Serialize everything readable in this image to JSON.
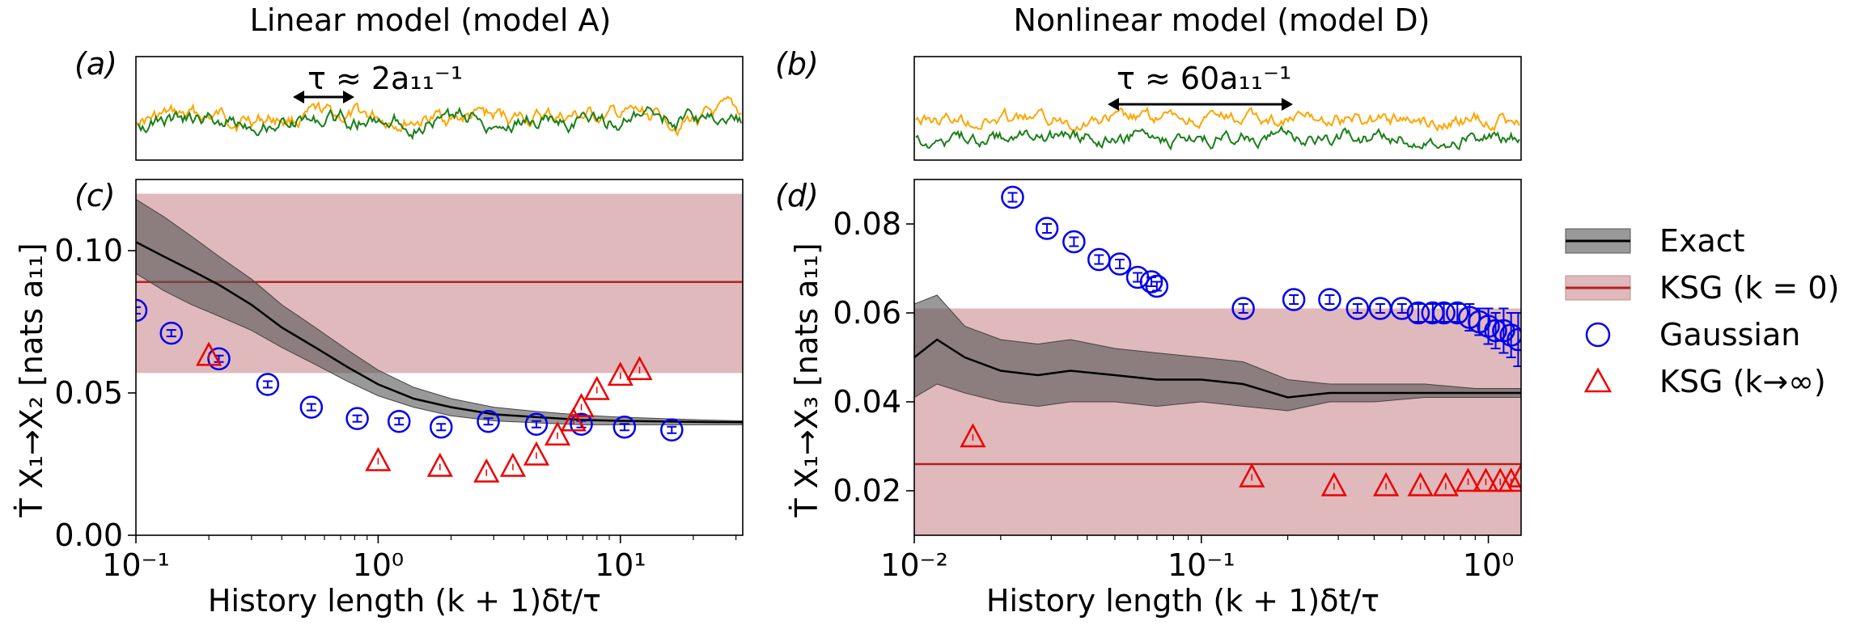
{
  "columns": {
    "left_title": "Linear model (model A)",
    "right_title": "Nonlinear model (model D)"
  },
  "panel_labels": {
    "a": "(a)",
    "b": "(b)",
    "c": "(c)",
    "d": "(d)"
  },
  "annotations": {
    "a": "τ ≈ 2a₁₁⁻¹",
    "b": "τ ≈ 60a₁₁⁻¹"
  },
  "axes": {
    "xlabel": "History length (k + 1)δt/τ",
    "ylabel_c": "Ṫ X₁→X₂ [nats a₁₁]",
    "ylabel_d": "Ṫ X₁→X₃ [nats a₁₁]"
  },
  "legend": [
    {
      "key": "exact",
      "label": "Exact"
    },
    {
      "key": "ksg0",
      "label": "KSG (k = 0)"
    },
    {
      "key": "gaussian",
      "label": "Gaussian"
    },
    {
      "key": "ksginf",
      "label": "KSG (k→∞)"
    }
  ],
  "colors": {
    "exact": "#000000",
    "exact_band": "#555555",
    "ksg0": "#b22222",
    "ksg0_band": "#c98b8e",
    "gaussian": "#0000ee",
    "ksginf": "#ee0000",
    "trace_orange": "#ffa500",
    "trace_green": "#1a7f1a"
  },
  "chart_data": [
    {
      "id": "c",
      "type": "scatter",
      "xscale": "log",
      "xlim": [
        0.1,
        32
      ],
      "ylim": [
        0.0,
        0.125
      ],
      "xticks": [
        0.1,
        1,
        10
      ],
      "xtick_labels": [
        "10⁻¹",
        "10⁰",
        "10¹"
      ],
      "yticks": [
        0.0,
        0.05,
        0.1
      ],
      "ytick_labels": [
        "0.00",
        "0.05",
        "0.10"
      ],
      "xlabel": "History length (k + 1)δt/τ",
      "ylabel": "Ṫ X₁→X₂ [nats a₁₁]",
      "exact": {
        "x": [
          0.1,
          0.13,
          0.17,
          0.22,
          0.3,
          0.4,
          0.55,
          0.75,
          1.0,
          1.4,
          2.0,
          3.0,
          4.5,
          7.0,
          10,
          15,
          22,
          32
        ],
        "y": [
          0.103,
          0.098,
          0.093,
          0.088,
          0.081,
          0.073,
          0.066,
          0.059,
          0.053,
          0.048,
          0.045,
          0.0425,
          0.0415,
          0.0405,
          0.0402,
          0.04,
          0.0398,
          0.0397
        ],
        "band_upper": [
          0.118,
          0.112,
          0.105,
          0.098,
          0.09,
          0.081,
          0.073,
          0.065,
          0.058,
          0.052,
          0.048,
          0.045,
          0.0435,
          0.0422,
          0.0415,
          0.041,
          0.0405,
          0.0402
        ],
        "band_lower": [
          0.092,
          0.086,
          0.081,
          0.077,
          0.072,
          0.066,
          0.06,
          0.054,
          0.049,
          0.045,
          0.042,
          0.0402,
          0.0395,
          0.0388,
          0.0388,
          0.0388,
          0.0388,
          0.0388
        ]
      },
      "ksg0": {
        "value": 0.089,
        "band": [
          0.057,
          0.12
        ]
      },
      "gaussian": {
        "x": [
          0.1,
          0.14,
          0.22,
          0.35,
          0.53,
          0.82,
          1.22,
          1.82,
          2.85,
          4.5,
          6.9,
          10.4,
          16.3
        ],
        "y": [
          0.079,
          0.071,
          0.062,
          0.053,
          0.045,
          0.041,
          0.04,
          0.038,
          0.04,
          0.039,
          0.039,
          0.038,
          0.037
        ],
        "err": [
          0.001,
          0.001,
          0.001,
          0.001,
          0.001,
          0.001,
          0.001,
          0.001,
          0.001,
          0.001,
          0.001,
          0.001,
          0.001
        ]
      },
      "ksginf": {
        "x": [
          0.2,
          1.0,
          1.8,
          2.8,
          3.6,
          4.5,
          5.5,
          6.4,
          6.9,
          8.0,
          10.0,
          12.0
        ],
        "y": [
          0.063,
          0.026,
          0.024,
          0.022,
          0.024,
          0.028,
          0.035,
          0.04,
          0.045,
          0.051,
          0.056,
          0.058
        ]
      }
    },
    {
      "id": "d",
      "type": "scatter",
      "xscale": "log",
      "xlim": [
        0.01,
        1.3
      ],
      "ylim": [
        0.01,
        0.09
      ],
      "xticks": [
        0.01,
        0.1,
        1
      ],
      "xtick_labels": [
        "10⁻²",
        "10⁻¹",
        "10⁰"
      ],
      "yticks": [
        0.02,
        0.04,
        0.06,
        0.08
      ],
      "ytick_labels": [
        "0.02",
        "0.04",
        "0.06",
        "0.08"
      ],
      "xlabel": "History length (k + 1)δt/τ",
      "ylabel": "Ṫ X₁→X₃ [nats a₁₁]",
      "exact": {
        "x": [
          0.01,
          0.012,
          0.015,
          0.02,
          0.027,
          0.035,
          0.05,
          0.07,
          0.1,
          0.14,
          0.2,
          0.28,
          0.4,
          0.6,
          0.9,
          1.3
        ],
        "y": [
          0.05,
          0.054,
          0.05,
          0.047,
          0.046,
          0.047,
          0.046,
          0.045,
          0.045,
          0.044,
          0.041,
          0.042,
          0.042,
          0.042,
          0.042,
          0.042
        ],
        "band_upper": [
          0.062,
          0.064,
          0.057,
          0.054,
          0.053,
          0.054,
          0.052,
          0.051,
          0.05,
          0.049,
          0.045,
          0.044,
          0.044,
          0.044,
          0.043,
          0.043
        ],
        "band_lower": [
          0.041,
          0.044,
          0.042,
          0.04,
          0.039,
          0.04,
          0.04,
          0.039,
          0.04,
          0.039,
          0.038,
          0.04,
          0.04,
          0.041,
          0.041,
          0.041
        ]
      },
      "ksg0": {
        "value": 0.026,
        "band": [
          0.01,
          0.061
        ]
      },
      "gaussian": {
        "x": [
          0.022,
          0.029,
          0.036,
          0.044,
          0.052,
          0.06,
          0.067,
          0.07,
          0.14,
          0.21,
          0.28,
          0.35,
          0.42,
          0.5,
          0.57,
          0.64,
          0.7,
          0.78,
          0.86,
          0.93,
          1.0,
          1.06,
          1.13,
          1.2,
          1.27
        ],
        "y": [
          0.086,
          0.079,
          0.076,
          0.072,
          0.071,
          0.068,
          0.067,
          0.066,
          0.061,
          0.063,
          0.063,
          0.061,
          0.061,
          0.061,
          0.06,
          0.06,
          0.06,
          0.06,
          0.059,
          0.058,
          0.057,
          0.056,
          0.056,
          0.055,
          0.054
        ],
        "err": [
          0.001,
          0.001,
          0.001,
          0.001,
          0.001,
          0.001,
          0.001,
          0.001,
          0.001,
          0.001,
          0.001,
          0.001,
          0.001,
          0.001,
          0.002,
          0.002,
          0.002,
          0.002,
          0.003,
          0.003,
          0.004,
          0.004,
          0.005,
          0.005,
          0.006
        ]
      },
      "ksginf": {
        "x": [
          0.016,
          0.15,
          0.29,
          0.44,
          0.58,
          0.71,
          0.85,
          0.98,
          1.1,
          1.2,
          1.3
        ],
        "y": [
          0.032,
          0.023,
          0.021,
          0.021,
          0.021,
          0.021,
          0.022,
          0.022,
          0.022,
          0.022,
          0.023
        ]
      }
    }
  ]
}
